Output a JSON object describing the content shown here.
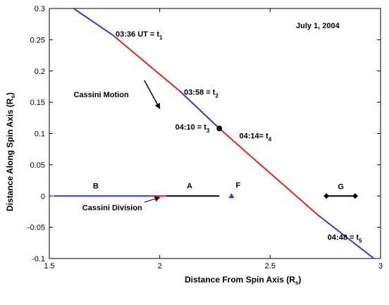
{
  "chart_data": {
    "type": "line",
    "title": "July 1, 2004",
    "xlabel": "Distance From Spin Axis (R",
    "xlabel_sub": "s",
    "ylabel": "Distance Along Spin Axis (R",
    "ylabel_sub": "s",
    "xlim": [
      1.5,
      3.0
    ],
    "ylim": [
      -0.1,
      0.3
    ],
    "xticks": [
      1.5,
      2,
      2.5,
      3
    ],
    "xtick_labels": [
      "1.5",
      "2",
      "2.5",
      "3"
    ],
    "yticks": [
      -0.1,
      -0.05,
      0,
      0.05,
      0.1,
      0.15,
      0.2,
      0.25,
      0.3
    ],
    "ytick_labels": [
      "-0.1",
      "-0.05",
      "0",
      "0.05",
      "0.1",
      "0.15",
      "0.2",
      "0.25",
      "0.3"
    ],
    "grid": false,
    "colors": {
      "blue": "#2a3fd6",
      "red": "#e8231e",
      "black": "#000000"
    },
    "trajectory": [
      {
        "x": [
          1.61,
          1.785
        ],
        "y": [
          0.3,
          0.258
        ],
        "color": "blue"
      },
      {
        "x": [
          1.785,
          2.09
        ],
        "y": [
          0.258,
          0.168
        ],
        "color": "red"
      },
      {
        "x": [
          2.09,
          2.27
        ],
        "y": [
          0.168,
          0.108
        ],
        "color": "blue"
      },
      {
        "x": [
          2.27,
          2.44
        ],
        "y": [
          0.108,
          0.055
        ],
        "color": "red"
      },
      {
        "x": [
          2.44,
          2.715
        ],
        "y": [
          0.055,
          -0.03
        ],
        "color": "red"
      },
      {
        "x": [
          2.715,
          2.97
        ],
        "y": [
          -0.03,
          -0.1
        ],
        "color": "blue"
      }
    ],
    "rings": [
      {
        "x": [
          1.52,
          1.96
        ],
        "y": [
          0,
          0
        ],
        "color": "blue"
      },
      {
        "x": [
          1.96,
          2.03
        ],
        "y": [
          0,
          0
        ],
        "color": "red"
      },
      {
        "x": [
          2.03,
          2.27
        ],
        "y": [
          0,
          0
        ],
        "color": "black"
      }
    ],
    "f_ring": {
      "x": 2.325,
      "y": 0,
      "label": "F"
    },
    "g_ring": {
      "x": [
        2.755,
        2.885
      ],
      "y": 0,
      "label": "G"
    },
    "ring_labels": [
      {
        "text": "B",
        "x": 1.71,
        "y": 0.012
      },
      {
        "text": "A",
        "x": 2.135,
        "y": 0.012
      }
    ],
    "cassini_division": {
      "label": "Cassini Division",
      "arrow_from": [
        1.93,
        -0.01
      ],
      "arrow_to": [
        2.0,
        0.0
      ],
      "text_x": 1.785,
      "text_y": -0.023
    },
    "motion": {
      "label": "Cassini Motion",
      "arrow_from": [
        1.93,
        0.185
      ],
      "arrow_to": [
        2.0,
        0.14
      ],
      "text_x": 1.61,
      "text_y": 0.158
    },
    "t3_marker": {
      "x": 2.27,
      "y": 0.108
    },
    "time_labels": [
      {
        "main": "03:36 UT = t",
        "sub": "1",
        "x": 1.8,
        "y": 0.255
      },
      {
        "main": "03:58 = t",
        "sub": "2",
        "x": 2.11,
        "y": 0.162
      },
      {
        "main": "04:10 = t",
        "sub": "3",
        "x": 2.07,
        "y": 0.106
      },
      {
        "main": "04:14= t",
        "sub": "4",
        "x": 2.36,
        "y": 0.092
      },
      {
        "main": "04:48 = t",
        "sub": "5",
        "x": 2.76,
        "y": -0.07
      }
    ]
  }
}
